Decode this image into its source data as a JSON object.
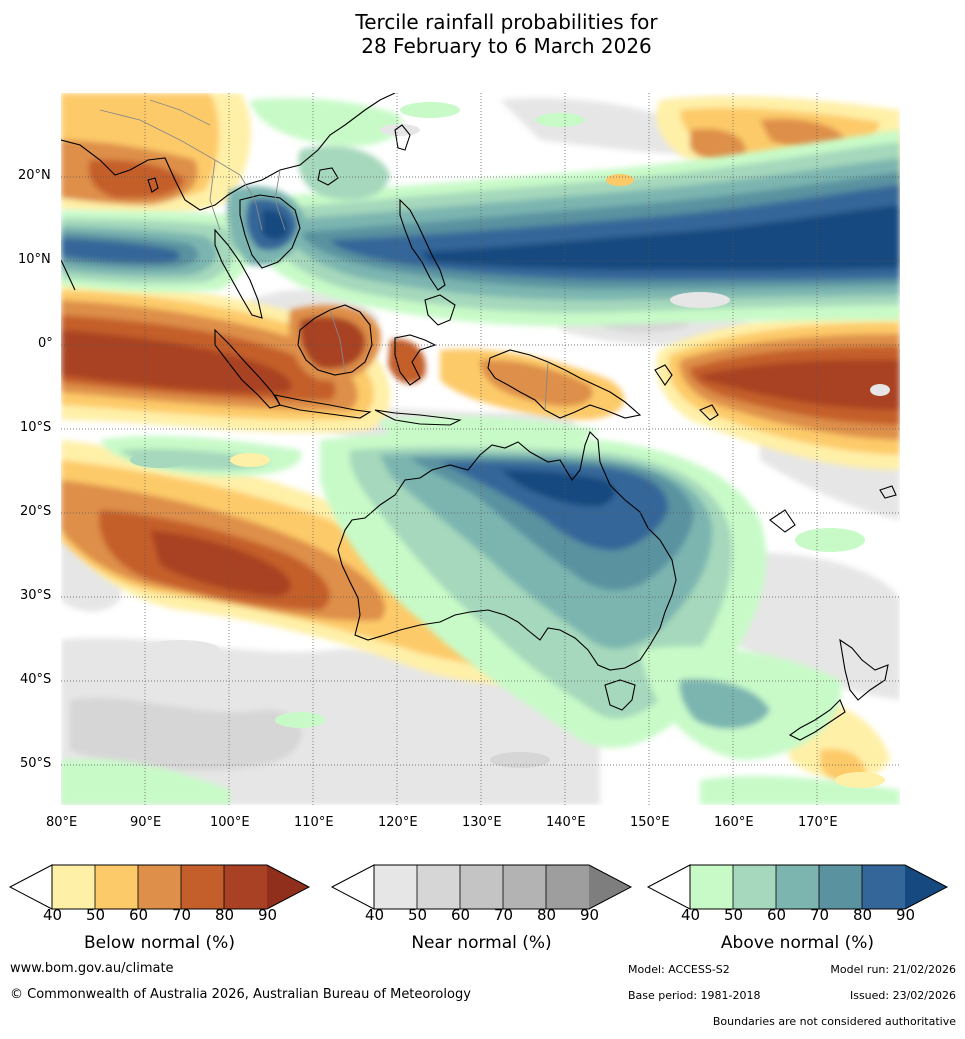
{
  "title": {
    "line1": "Tercile rainfall probabilities for",
    "line2": "28 February to 6 March 2026"
  },
  "map": {
    "region": "Australia and Maritime Continent",
    "lat_ticks": [
      "20°N",
      "10°N",
      "0°",
      "10°S",
      "20°S",
      "30°S",
      "40°S",
      "50°S"
    ],
    "lon_ticks": [
      "80°E",
      "90°E",
      "100°E",
      "110°E",
      "120°E",
      "130°E",
      "140°E",
      "150°E",
      "160°E",
      "170°E"
    ],
    "colors": {
      "below": [
        "#fff0a8",
        "#fdca69",
        "#de8f49",
        "#c45f2c",
        "#a94224",
        "#8f2f1c"
      ],
      "near": [
        "#e6e6e6",
        "#d6d6d6",
        "#c4c4c4",
        "#b3b3b3",
        "#9e9e9e",
        "#7e7e7e"
      ],
      "above": [
        "#c8fac8",
        "#a5d8bc",
        "#7cb5b0",
        "#5a92a0",
        "#346699",
        "#15497f"
      ],
      "coast": "#000000",
      "border": "#888888"
    }
  },
  "legend": {
    "below": {
      "title": "Below normal (%)",
      "ticks": [
        "40",
        "50",
        "60",
        "70",
        "80",
        "90"
      ]
    },
    "near": {
      "title": "Near normal (%)",
      "ticks": [
        "40",
        "50",
        "60",
        "70",
        "80",
        "90"
      ]
    },
    "above": {
      "title": "Above normal (%)",
      "ticks": [
        "40",
        "50",
        "60",
        "70",
        "80",
        "90"
      ]
    }
  },
  "footer": {
    "website": "www.bom.gov.au/climate",
    "copyright": "© Commonwealth of Australia 2026, Australian Bureau of Meteorology",
    "model": "Model: ACCESS-S2",
    "model_run": "Model run: 21/02/2026",
    "base_period": "Base period: 1981-2018",
    "issued": "Issued: 23/02/2026",
    "disclaimer": "Boundaries are not considered authoritative"
  }
}
